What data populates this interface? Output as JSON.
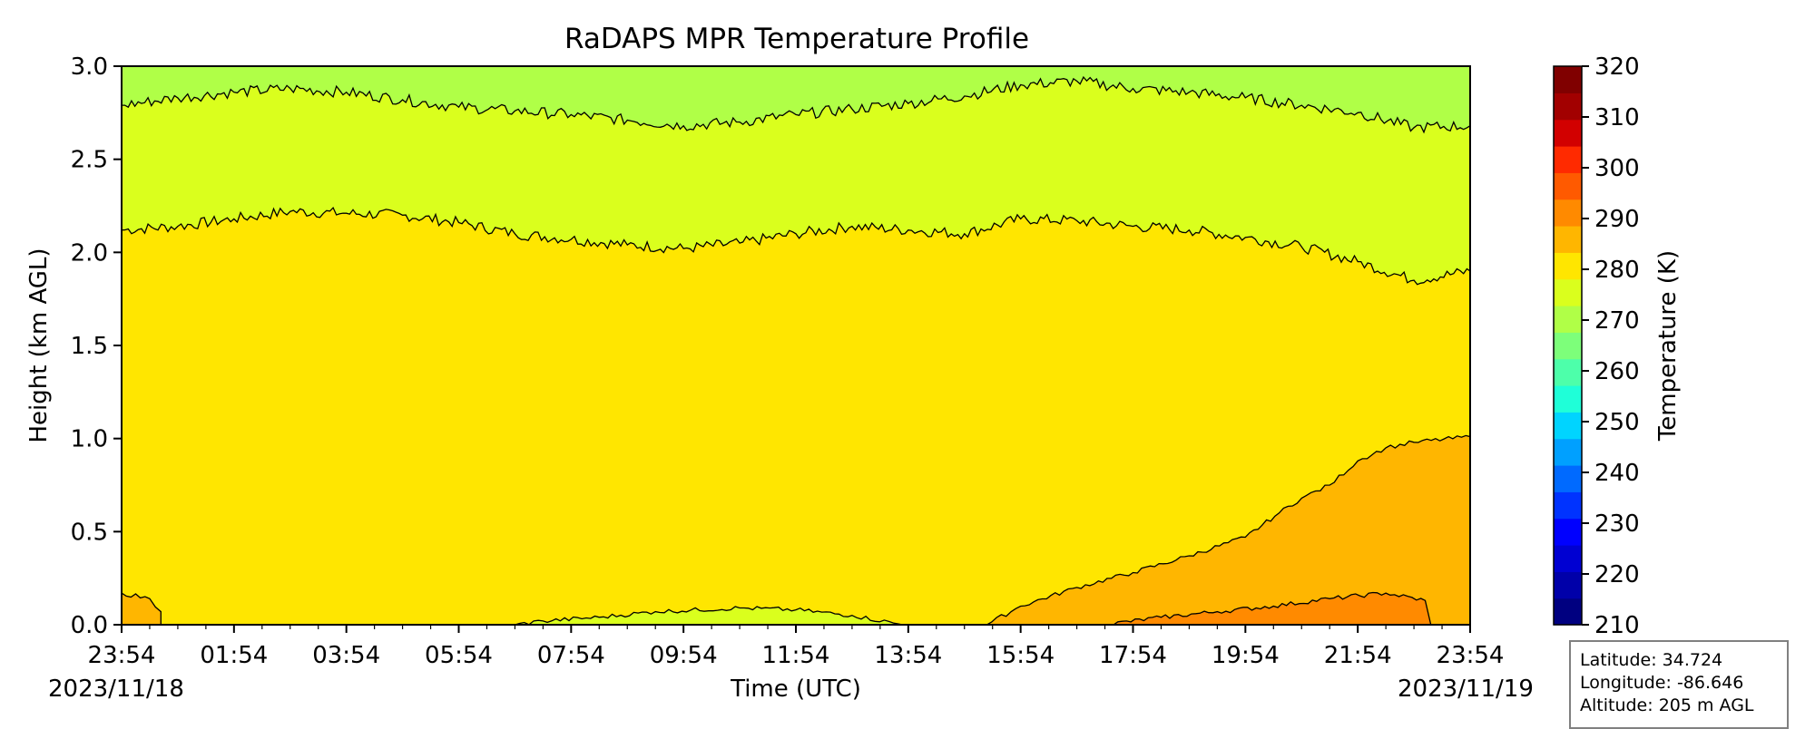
{
  "chart_data": {
    "type": "heatmap",
    "title": "RaDAPS MPR Temperature Profile",
    "xlabel": "Time (UTC)",
    "ylabel": "Height (km AGL)",
    "x_ticks": [
      "23:54",
      "01:54",
      "03:54",
      "05:54",
      "07:54",
      "09:54",
      "11:54",
      "13:54",
      "15:54",
      "17:54",
      "19:54",
      "21:54",
      "23:54"
    ],
    "x_range_hours": [
      0,
      24
    ],
    "y_ticks": [
      "0.0",
      "0.5",
      "1.0",
      "1.5",
      "2.0",
      "2.5",
      "3.0"
    ],
    "ylim": [
      0,
      3.0
    ],
    "start_date": "2023/11/18",
    "end_date": "2023/11/19",
    "colorbar": {
      "label": "Temperature (K)",
      "ticks": [
        "210",
        "220",
        "230",
        "240",
        "250",
        "260",
        "270",
        "280",
        "290",
        "300",
        "310",
        "320"
      ],
      "range": [
        210,
        320
      ],
      "colors": [
        "#000080",
        "#0000a9",
        "#0000d2",
        "#0000ff",
        "#0033ff",
        "#006aff",
        "#00a0ff",
        "#00d4ff",
        "#1fffd8",
        "#4dffaa",
        "#7dff7a",
        "#b0ff47",
        "#daff1d",
        "#ffe600",
        "#ffb600",
        "#ff8a00",
        "#ff5a00",
        "#ff2a00",
        "#d20000",
        "#a20000",
        "#800000"
      ]
    },
    "contours": [
      {
        "level_k": 275,
        "fill_below": "#ffe600",
        "fill_above": "#daff1d",
        "points": [
          [
            0,
            2.12
          ],
          [
            1,
            2.14
          ],
          [
            2,
            2.18
          ],
          [
            3,
            2.22
          ],
          [
            4,
            2.21
          ],
          [
            5,
            2.2
          ],
          [
            6,
            2.16
          ],
          [
            7,
            2.1
          ],
          [
            8,
            2.07
          ],
          [
            9,
            2.04
          ],
          [
            10,
            2.02
          ],
          [
            11,
            2.05
          ],
          [
            12,
            2.1
          ],
          [
            13,
            2.14
          ],
          [
            14,
            2.12
          ],
          [
            15,
            2.1
          ],
          [
            16,
            2.18
          ],
          [
            17,
            2.17
          ],
          [
            18,
            2.14
          ],
          [
            19,
            2.12
          ],
          [
            20,
            2.08
          ],
          [
            21,
            2.03
          ],
          [
            22,
            1.95
          ],
          [
            23,
            1.85
          ],
          [
            24,
            1.9
          ]
        ]
      },
      {
        "level_k": 270,
        "fill_above": "#b0ff47",
        "points": [
          [
            0,
            2.79
          ],
          [
            1,
            2.83
          ],
          [
            2,
            2.86
          ],
          [
            3,
            2.88
          ],
          [
            4,
            2.86
          ],
          [
            5,
            2.82
          ],
          [
            6,
            2.78
          ],
          [
            7,
            2.76
          ],
          [
            8,
            2.74
          ],
          [
            9,
            2.71
          ],
          [
            10,
            2.68
          ],
          [
            11,
            2.7
          ],
          [
            12,
            2.74
          ],
          [
            13,
            2.77
          ],
          [
            14,
            2.8
          ],
          [
            15,
            2.84
          ],
          [
            16,
            2.9
          ],
          [
            17,
            2.92
          ],
          [
            18,
            2.88
          ],
          [
            19,
            2.86
          ],
          [
            20,
            2.83
          ],
          [
            21,
            2.79
          ],
          [
            22,
            2.75
          ],
          [
            23,
            2.67
          ],
          [
            24,
            2.68
          ]
        ]
      },
      {
        "level_k": 280,
        "fill_above": "#ffb600",
        "region": "lower-right",
        "points": [
          [
            15.4,
            0
          ],
          [
            16,
            0.1
          ],
          [
            17,
            0.2
          ],
          [
            18,
            0.28
          ],
          [
            19,
            0.37
          ],
          [
            20,
            0.47
          ],
          [
            20.6,
            0.6
          ],
          [
            21,
            0.68
          ],
          [
            21.5,
            0.75
          ],
          [
            22,
            0.88
          ],
          [
            22.5,
            0.95
          ],
          [
            23,
            0.98
          ],
          [
            24,
            1.01
          ]
        ]
      },
      {
        "level_k": 280,
        "fill_above": "#ffb600",
        "region": "lower-left",
        "points": [
          [
            0,
            0.17
          ],
          [
            0.5,
            0.14
          ],
          [
            0.7,
            0.07
          ],
          [
            0.7,
            0
          ]
        ]
      },
      {
        "level_k": 285,
        "fill_above": "#ff8a00",
        "region": "lower-right",
        "points": [
          [
            17.5,
            0
          ],
          [
            18.5,
            0.04
          ],
          [
            19.5,
            0.07
          ],
          [
            20.5,
            0.1
          ],
          [
            21.5,
            0.14
          ],
          [
            22.5,
            0.17
          ],
          [
            23.2,
            0.13
          ],
          [
            23.3,
            0
          ]
        ]
      },
      {
        "level_k": 275,
        "fill_above": "#daff1d",
        "region": "surface-bump",
        "points": [
          [
            7,
            0
          ],
          [
            7.5,
            0.02
          ],
          [
            8.5,
            0.04
          ],
          [
            9.5,
            0.07
          ],
          [
            11,
            0.09
          ],
          [
            12,
            0.08
          ],
          [
            13,
            0.05
          ],
          [
            13.9,
            0
          ]
        ]
      }
    ]
  },
  "info": {
    "latitude": "Latitude: 34.724",
    "longitude": "Longitude: -86.646",
    "altitude": "Altitude: 205 m AGL"
  }
}
